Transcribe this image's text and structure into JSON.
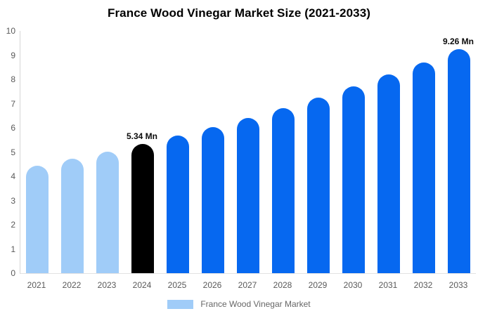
{
  "chart_data": {
    "type": "bar",
    "title": "France Wood Vinegar Market Size (2021-2033)",
    "categories": [
      "2021",
      "2022",
      "2023",
      "2024",
      "2025",
      "2026",
      "2027",
      "2028",
      "2029",
      "2030",
      "2031",
      "2032",
      "2033"
    ],
    "values": [
      4.44,
      4.72,
      5.02,
      5.34,
      5.68,
      6.04,
      6.42,
      6.82,
      7.25,
      7.71,
      8.19,
      8.71,
      9.26
    ],
    "unit": "Mn",
    "xlabel": "",
    "ylabel": "",
    "ylim": [
      0,
      10
    ],
    "yticks": [
      0,
      1,
      2,
      3,
      4,
      5,
      6,
      7,
      8,
      9,
      10
    ],
    "grid": false,
    "legend_position": "bottom",
    "bar_colors": [
      "#A0CCF8",
      "#A0CCF8",
      "#A0CCF8",
      "#000000",
      "#0668F0",
      "#0668F0",
      "#0668F0",
      "#0668F0",
      "#0668F0",
      "#0668F0",
      "#0668F0",
      "#0668F0",
      "#0668F0"
    ],
    "annotations": [
      {
        "category": "2024",
        "text": "5.34 Mn"
      },
      {
        "category": "2033",
        "text": "9.26 Mn"
      }
    ]
  },
  "legend": {
    "label": "France Wood Vinegar Market",
    "swatch_color": "#A0CCF8"
  },
  "colors": {
    "historical_bar": "#A0CCF8",
    "base_year_bar": "#000000",
    "forecast_bar": "#0668F0",
    "axis_line": "#d6d6d6",
    "baseline": "#e2e2e2",
    "tick_text": "#595959",
    "legend_text": "#666666",
    "title_text": "#000000"
  }
}
